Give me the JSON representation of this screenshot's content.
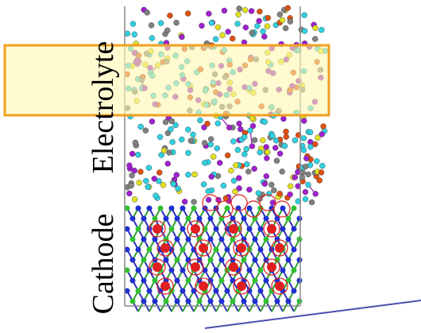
{
  "labels": {
    "electrolyte": "Electrolyte",
    "cathode": "Cathode"
  }
}
